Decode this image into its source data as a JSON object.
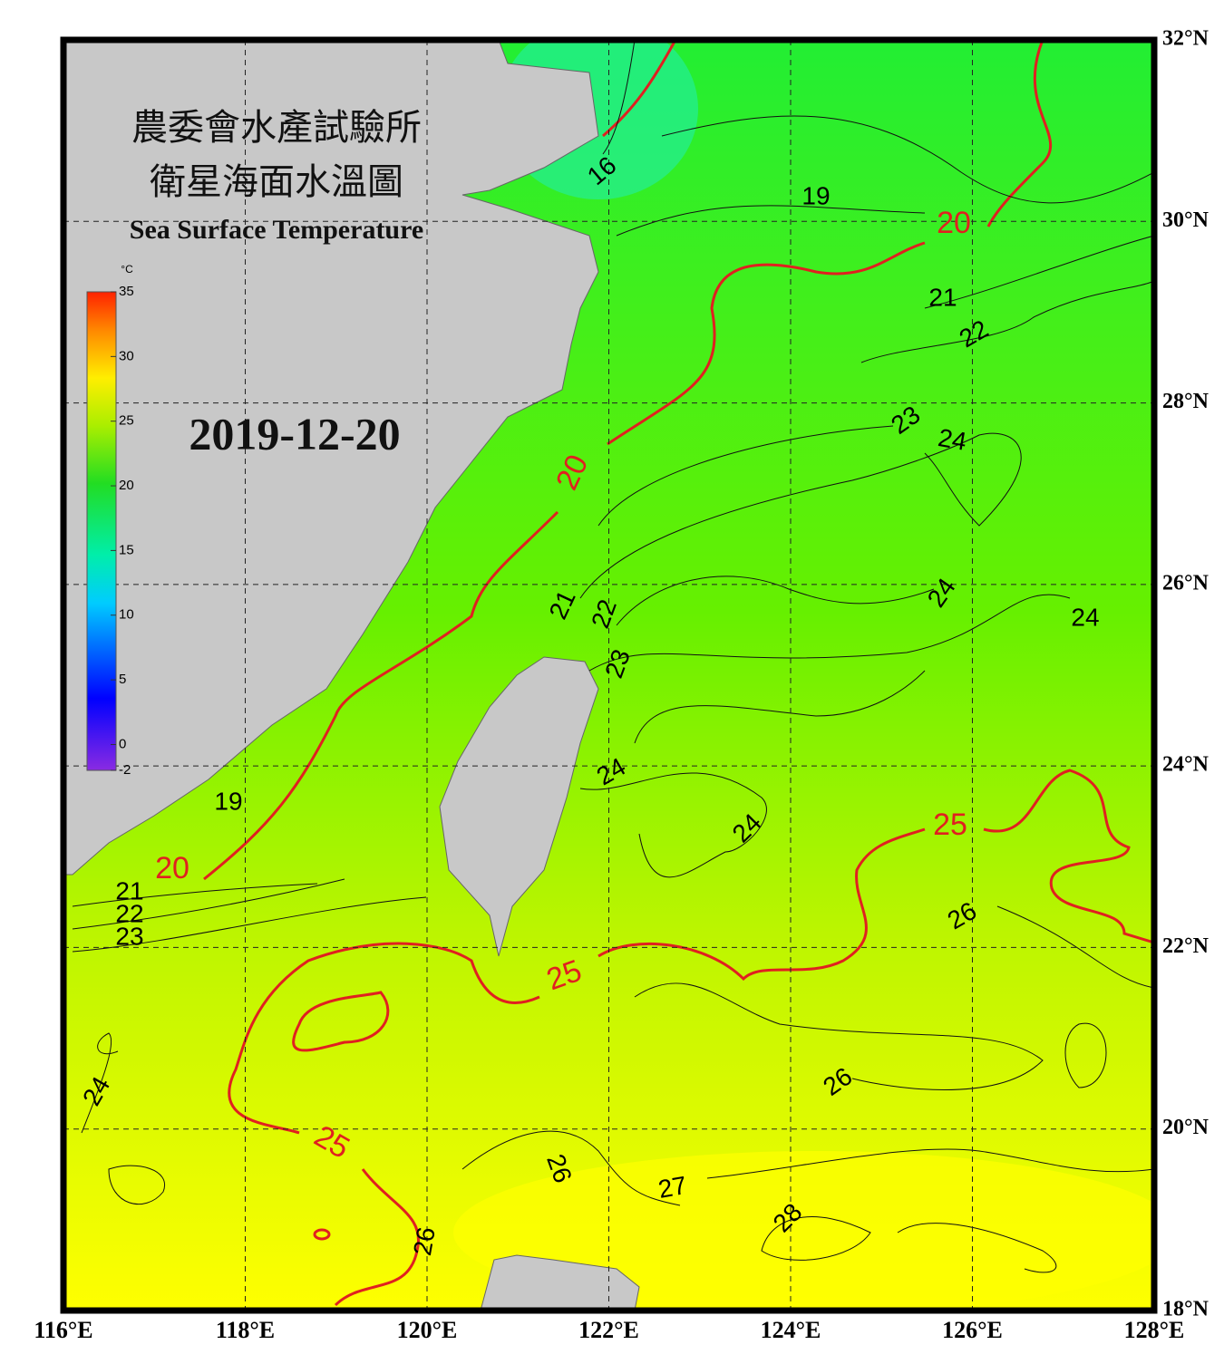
{
  "header": {
    "org": "農委會水產試驗所",
    "title": "衛星海面水溫圖",
    "subtitle": "Sea Surface Temperature",
    "date": "2019-12-20"
  },
  "map": {
    "lon_range": [
      116,
      128
    ],
    "lat_range": [
      18,
      32
    ],
    "lon_ticks": [
      {
        "value": 116,
        "label": "116°E"
      },
      {
        "value": 118,
        "label": "118°E"
      },
      {
        "value": 120,
        "label": "120°E"
      },
      {
        "value": 122,
        "label": "122°E"
      },
      {
        "value": 124,
        "label": "124°E"
      },
      {
        "value": 126,
        "label": "126°E"
      },
      {
        "value": 128,
        "label": "128°E"
      }
    ],
    "lat_ticks": [
      {
        "value": 18,
        "label": "18°N"
      },
      {
        "value": 20,
        "label": "20°N"
      },
      {
        "value": 22,
        "label": "22°N"
      },
      {
        "value": 24,
        "label": "24°N"
      },
      {
        "value": 26,
        "label": "26°N"
      },
      {
        "value": 28,
        "label": "28°N"
      },
      {
        "value": 30,
        "label": "30°N"
      },
      {
        "value": 32,
        "label": "32°N"
      }
    ]
  },
  "colorbar": {
    "unit": "°C",
    "range": [
      -2,
      35
    ],
    "ticks": [
      35,
      30,
      25,
      20,
      15,
      10,
      5,
      0,
      -2
    ]
  },
  "contour_labels": [
    "16",
    "19",
    "20",
    "21",
    "22",
    "23",
    "24",
    "20",
    "24",
    "24",
    "21",
    "22",
    "23",
    "24",
    "24",
    "25",
    "19",
    "20",
    "21",
    "22",
    "23",
    "26",
    "25",
    "26",
    "24",
    "25",
    "26",
    "27",
    "28",
    "26"
  ]
}
